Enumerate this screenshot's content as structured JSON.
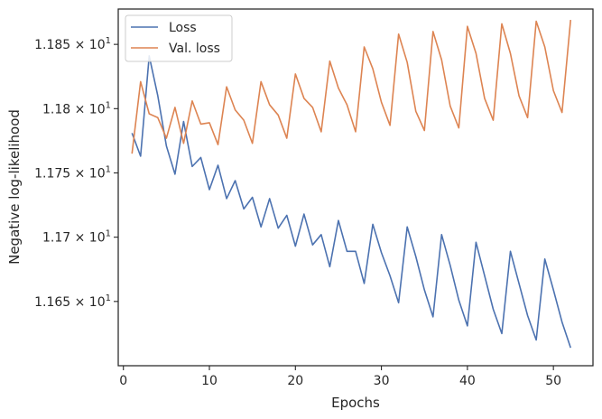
{
  "chart_data": {
    "type": "line",
    "xlabel": "Epochs",
    "ylabel": "Negative log-likelihood",
    "xlim": [
      -0.6,
      54.6
    ],
    "ylim": [
      11.6,
      11.8775
    ],
    "x_ticks": [
      0,
      10,
      20,
      30,
      40,
      50
    ],
    "x_tick_labels": [
      "0",
      "10",
      "20",
      "30",
      "40",
      "50"
    ],
    "y_ticks": [
      11.65,
      11.7,
      11.75,
      11.8,
      11.85
    ],
    "y_tick_labels": [
      {
        "mantissa": "1.165",
        "base": "10",
        "exp": "1"
      },
      {
        "mantissa": "1.17",
        "base": "10",
        "exp": "1"
      },
      {
        "mantissa": "1.175",
        "base": "10",
        "exp": "1"
      },
      {
        "mantissa": "1.18",
        "base": "10",
        "exp": "1"
      },
      {
        "mantissa": "1.185",
        "base": "10",
        "exp": "1"
      }
    ],
    "legend_position": "top-left",
    "grid": false,
    "x": [
      1,
      2,
      3,
      4,
      5,
      6,
      7,
      8,
      9,
      10,
      11,
      12,
      13,
      14,
      15,
      16,
      17,
      18,
      19,
      20,
      21,
      22,
      23,
      24,
      25,
      26,
      27,
      28,
      29,
      30,
      31,
      32,
      33,
      34,
      35,
      36,
      37,
      38,
      39,
      40,
      41,
      42,
      43,
      44,
      45,
      46,
      47,
      48,
      49,
      50,
      51,
      52
    ],
    "series": [
      {
        "name": "Loss",
        "color": "#4c72b0",
        "values": [
          11.781,
          11.763,
          11.841,
          11.81,
          11.771,
          11.749,
          11.79,
          11.755,
          11.762,
          11.737,
          11.756,
          11.73,
          11.744,
          11.722,
          11.731,
          11.708,
          11.73,
          11.707,
          11.717,
          11.693,
          11.718,
          11.694,
          11.702,
          11.677,
          11.713,
          11.689,
          11.689,
          11.664,
          11.71,
          11.688,
          11.67,
          11.649,
          11.708,
          11.685,
          11.659,
          11.638,
          11.702,
          11.678,
          11.651,
          11.631,
          11.696,
          11.67,
          11.644,
          11.625,
          11.689,
          11.664,
          11.639,
          11.62,
          11.683,
          11.659,
          11.634,
          11.614
        ]
      },
      {
        "name": "Val. loss",
        "color": "#dd8452",
        "values": [
          11.765,
          11.821,
          11.796,
          11.793,
          11.777,
          11.801,
          11.773,
          11.806,
          11.788,
          11.789,
          11.772,
          11.817,
          11.799,
          11.791,
          11.773,
          11.821,
          11.803,
          11.795,
          11.777,
          11.827,
          11.808,
          11.801,
          11.782,
          11.837,
          11.816,
          11.803,
          11.782,
          11.848,
          11.831,
          11.805,
          11.787,
          11.858,
          11.836,
          11.798,
          11.783,
          11.86,
          11.838,
          11.802,
          11.785,
          11.864,
          11.843,
          11.808,
          11.791,
          11.866,
          11.843,
          11.81,
          11.793,
          11.868,
          11.848,
          11.814,
          11.797,
          11.869
        ]
      }
    ]
  }
}
